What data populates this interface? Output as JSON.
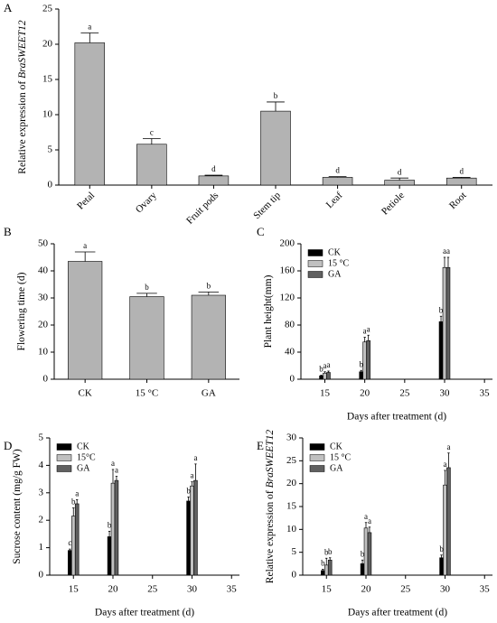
{
  "chart_data": [
    {
      "type": "bar",
      "panel": "A",
      "ylabel": "Relative expression of",
      "ylabel_italic": "BraSWEET12",
      "categories": [
        "Petal",
        "Ovary",
        "Fruit pods",
        "Stem tip",
        "Leaf",
        "Petiole",
        "Root"
      ],
      "values": [
        20.2,
        5.8,
        1.3,
        10.5,
        1.1,
        0.7,
        1.0
      ],
      "errors": [
        1.4,
        0.8,
        0.1,
        1.3,
        0.1,
        0.3,
        0.1
      ],
      "letters": [
        "a",
        "c",
        "d",
        "b",
        "d",
        "d",
        "d"
      ],
      "color": "#b3b3b3",
      "ylim": [
        0,
        25
      ],
      "yticks": [
        0,
        5,
        10,
        15,
        20,
        25
      ]
    },
    {
      "type": "bar",
      "panel": "B",
      "ylabel": "Flowering time (d)",
      "categories": [
        "CK",
        "15 °C",
        "GA"
      ],
      "values": [
        43.5,
        30.5,
        31
      ],
      "errors": [
        3.5,
        1.2,
        1.2
      ],
      "letters": [
        "a",
        "b",
        "b"
      ],
      "color": "#b3b3b3",
      "ylim": [
        0,
        50
      ],
      "yticks": [
        0,
        10,
        20,
        30,
        40,
        50
      ]
    },
    {
      "type": "grouped-bar",
      "panel": "C",
      "ylabel": "Plant height(mm)",
      "xlabel": "Days after treatment (d)",
      "x": [
        15,
        20,
        30
      ],
      "xlim": [
        12,
        36
      ],
      "xticks": [
        15,
        20,
        25,
        30,
        35
      ],
      "ylim": [
        0,
        200
      ],
      "yticks": [
        0,
        40,
        80,
        120,
        160,
        200
      ],
      "legend": "top-left",
      "series": [
        {
          "name": "CK",
          "color": "#000000",
          "values": [
            5,
            11,
            85
          ],
          "errors": [
            1,
            2,
            8
          ],
          "letters": [
            "b",
            "b",
            "b"
          ]
        },
        {
          "name": "15 °C",
          "color": "#c0c0c0",
          "values": [
            9,
            55,
            165
          ],
          "errors": [
            2,
            7,
            15
          ],
          "letters": [
            "a",
            "a",
            "a"
          ]
        },
        {
          "name": "GA",
          "color": "#606060",
          "values": [
            10,
            57,
            165
          ],
          "errors": [
            2,
            8,
            15
          ],
          "letters": [
            "a",
            "a",
            "a"
          ]
        }
      ]
    },
    {
      "type": "grouped-bar",
      "panel": "D",
      "ylabel": "Sucrose content (mg/g FW)",
      "xlabel": "Days after treatment (d)",
      "x": [
        15,
        20,
        30
      ],
      "xlim": [
        12,
        36
      ],
      "xticks": [
        15,
        20,
        25,
        30,
        35
      ],
      "ylim": [
        0,
        5
      ],
      "yticks": [
        0,
        1,
        2,
        3,
        4,
        5
      ],
      "legend": "top-left",
      "series": [
        {
          "name": "CK",
          "color": "#000000",
          "values": [
            0.9,
            1.4,
            2.7
          ],
          "errors": [
            0.05,
            0.2,
            0.15
          ],
          "letters": [
            "c",
            "b",
            "b"
          ]
        },
        {
          "name": "15°C",
          "color": "#c0c0c0",
          "values": [
            2.15,
            3.35,
            3.25
          ],
          "errors": [
            0.3,
            0.5,
            0.15
          ],
          "letters": [
            "b",
            "a",
            "a"
          ]
        },
        {
          "name": "GA",
          "color": "#606060",
          "values": [
            2.6,
            3.45,
            3.45
          ],
          "errors": [
            0.15,
            0.15,
            0.6
          ],
          "letters": [
            "a",
            "a",
            "a"
          ]
        }
      ]
    },
    {
      "type": "grouped-bar",
      "panel": "E",
      "ylabel": "Relative expression of",
      "ylabel_italic": "BraSWEET12",
      "xlabel": "Days after treatment (d)",
      "x": [
        15,
        20,
        30
      ],
      "xlim": [
        12,
        36
      ],
      "xticks": [
        15,
        20,
        25,
        30,
        35
      ],
      "ylim": [
        0,
        30
      ],
      "yticks": [
        0,
        5,
        10,
        15,
        20,
        25,
        30
      ],
      "legend": "top-left",
      "series": [
        {
          "name": "CK",
          "color": "#000000",
          "values": [
            1,
            2.5,
            3.8
          ],
          "errors": [
            0.3,
            0.8,
            0.6
          ],
          "letters": [
            "b",
            "b",
            "b"
          ]
        },
        {
          "name": "15 °C",
          "color": "#c0c0c0",
          "values": [
            2.2,
            10.3,
            19.7
          ],
          "errors": [
            1.5,
            1.2,
            3.2
          ],
          "letters": [
            "b",
            "a",
            "a"
          ]
        },
        {
          "name": "GA",
          "color": "#606060",
          "values": [
            3.3,
            9.3,
            23.5
          ],
          "errors": [
            0.5,
            1.2,
            3.2
          ],
          "letters": [
            "b",
            "a",
            "a"
          ]
        }
      ]
    }
  ]
}
